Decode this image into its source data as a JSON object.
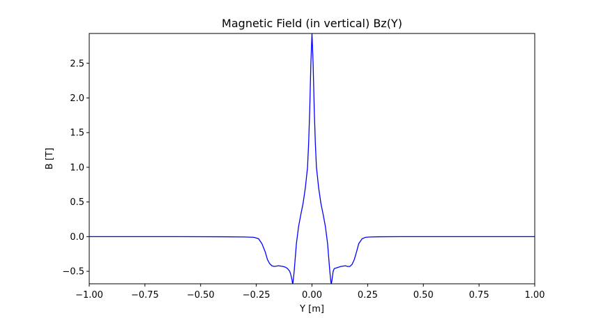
{
  "chart_data": {
    "type": "line",
    "title": "Magnetic Field (in vertical) Bz(Y)",
    "xlabel": "Y [m]",
    "ylabel": "B [T]",
    "xlim": [
      -1.0,
      1.0
    ],
    "ylim": [
      -0.68,
      2.93
    ],
    "grid": false,
    "x_ticks": [
      "−1.00",
      "−0.75",
      "−0.50",
      "−0.25",
      "0.00",
      "0.25",
      "0.50",
      "0.75",
      "1.00"
    ],
    "y_ticks": [
      "−0.5",
      "0.0",
      "0.5",
      "1.0",
      "1.5",
      "2.0",
      "2.5"
    ],
    "series": [
      {
        "color": "#0000ff",
        "x": [
          -1.0,
          -0.8,
          -0.6,
          -0.4,
          -0.3,
          -0.26,
          -0.24,
          -0.225,
          -0.21,
          -0.2,
          -0.19,
          -0.18,
          -0.17,
          -0.16,
          -0.15,
          -0.14,
          -0.13,
          -0.12,
          -0.11,
          -0.1,
          -0.095,
          -0.09,
          -0.087,
          -0.085,
          -0.08,
          -0.075,
          -0.07,
          -0.06,
          -0.05,
          -0.04,
          -0.03,
          -0.02,
          -0.015,
          -0.01,
          -0.005,
          0.0,
          0.005,
          0.01,
          0.015,
          0.02,
          0.03,
          0.04,
          0.05,
          0.06,
          0.07,
          0.075,
          0.08,
          0.085,
          0.087,
          0.09,
          0.095,
          0.1,
          0.11,
          0.12,
          0.13,
          0.14,
          0.15,
          0.16,
          0.17,
          0.18,
          0.19,
          0.2,
          0.21,
          0.225,
          0.24,
          0.26,
          0.3,
          0.4,
          0.6,
          0.8,
          1.0
        ],
        "y": [
          0.0,
          0.0,
          0.0,
          -0.002,
          -0.005,
          -0.01,
          -0.03,
          -0.1,
          -0.22,
          -0.33,
          -0.39,
          -0.42,
          -0.43,
          -0.425,
          -0.42,
          -0.425,
          -0.43,
          -0.44,
          -0.46,
          -0.5,
          -0.55,
          -0.62,
          -0.68,
          -0.66,
          -0.5,
          -0.3,
          -0.1,
          0.15,
          0.32,
          0.48,
          0.7,
          1.0,
          1.35,
          1.85,
          2.5,
          2.93,
          2.5,
          1.85,
          1.35,
          1.0,
          0.7,
          0.48,
          0.32,
          0.15,
          -0.1,
          -0.3,
          -0.5,
          -0.66,
          -0.68,
          -0.62,
          -0.5,
          -0.46,
          -0.45,
          -0.44,
          -0.43,
          -0.425,
          -0.42,
          -0.43,
          -0.43,
          -0.4,
          -0.33,
          -0.22,
          -0.1,
          -0.03,
          -0.01,
          -0.005,
          -0.002,
          0.0,
          0.0,
          0.0,
          0.0
        ]
      }
    ]
  }
}
